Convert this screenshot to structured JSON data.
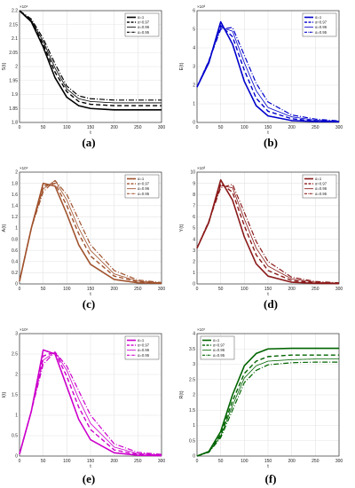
{
  "legend_labels": [
    "α=1",
    "α=0.97",
    "α=0.96",
    "α=0.95"
  ],
  "captions": [
    "(a)",
    "(b)",
    "(c)",
    "(d)",
    "(e)",
    "(f)"
  ],
  "chart_data": [
    {
      "type": "line",
      "caption": "(a)",
      "ylabel": "S(t)",
      "xlabel": "t",
      "exponent": "×10⁴",
      "color": "#000000",
      "xlim": [
        0,
        300
      ],
      "ylim": [
        1.8,
        2.2
      ],
      "xticks": [
        "0",
        "50",
        "100",
        "150",
        "200",
        "250",
        "300"
      ],
      "yticks": [
        "1.8",
        "1.85",
        "1.9",
        "1.95",
        "2",
        "2.05",
        "2.1",
        "2.15",
        "2.2"
      ],
      "legend_position": "top-right",
      "x": [
        0,
        25,
        50,
        75,
        100,
        125,
        150,
        200,
        250,
        300
      ],
      "series": [
        {
          "name": "α=1",
          "values": [
            2.2,
            2.16,
            2.07,
            1.96,
            1.89,
            1.86,
            1.85,
            1.845,
            1.845,
            1.845
          ]
        },
        {
          "name": "α=0.97",
          "values": [
            2.2,
            2.16,
            2.08,
            1.98,
            1.91,
            1.875,
            1.865,
            1.86,
            1.86,
            1.86
          ]
        },
        {
          "name": "α=0.96",
          "values": [
            2.2,
            2.165,
            2.09,
            1.995,
            1.92,
            1.885,
            1.875,
            1.87,
            1.87,
            1.87
          ]
        },
        {
          "name": "α=0.95",
          "values": [
            2.2,
            2.17,
            2.1,
            2.01,
            1.93,
            1.895,
            1.885,
            1.88,
            1.88,
            1.88
          ]
        }
      ]
    },
    {
      "type": "line",
      "caption": "(b)",
      "ylabel": "E(t)",
      "xlabel": "t",
      "exponent": "×10³",
      "color": "#0000cc",
      "xlim": [
        0,
        300
      ],
      "ylim": [
        0,
        6
      ],
      "xticks": [
        "0",
        "50",
        "100",
        "150",
        "200",
        "250",
        "300"
      ],
      "yticks": [
        "0",
        "1",
        "2",
        "3",
        "4",
        "5",
        "6"
      ],
      "legend_position": "top-right",
      "x": [
        0,
        25,
        50,
        75,
        100,
        125,
        150,
        200,
        250,
        300
      ],
      "series": [
        {
          "name": "α=1",
          "values": [
            1.9,
            3.2,
            5.4,
            4.2,
            2.2,
            0.9,
            0.35,
            0.1,
            0.05,
            0.04
          ]
        },
        {
          "name": "α=0.97",
          "values": [
            1.9,
            3.3,
            5.2,
            4.6,
            2.8,
            1.3,
            0.6,
            0.2,
            0.08,
            0.05
          ]
        },
        {
          "name": "α=0.96",
          "values": [
            1.9,
            3.3,
            5.1,
            4.9,
            3.2,
            1.7,
            0.8,
            0.3,
            0.12,
            0.06
          ]
        },
        {
          "name": "α=0.95",
          "values": [
            1.9,
            3.3,
            5.0,
            5.1,
            3.6,
            2.1,
            1.1,
            0.4,
            0.18,
            0.08
          ]
        }
      ]
    },
    {
      "type": "line",
      "caption": "(c)",
      "ylabel": "A(t)",
      "xlabel": "t",
      "exponent": "×10⁴",
      "color": "#a0522d",
      "xlim": [
        0,
        300
      ],
      "ylim": [
        0,
        2
      ],
      "xticks": [
        "0",
        "50",
        "100",
        "150",
        "200",
        "250",
        "300"
      ],
      "yticks": [
        "0",
        "0.2",
        "0.4",
        "0.6",
        "0.8",
        "1",
        "1.2",
        "1.4",
        "1.6",
        "1.8",
        "2"
      ],
      "legend_position": "top-right",
      "x": [
        0,
        25,
        50,
        75,
        100,
        125,
        150,
        200,
        250,
        300
      ],
      "series": [
        {
          "name": "α=1",
          "values": [
            0.05,
            1.0,
            1.8,
            1.75,
            1.25,
            0.7,
            0.35,
            0.08,
            0.02,
            0.01
          ]
        },
        {
          "name": "α=0.97",
          "values": [
            0.05,
            1.0,
            1.75,
            1.8,
            1.4,
            0.9,
            0.5,
            0.14,
            0.04,
            0.015
          ]
        },
        {
          "name": "α=0.96",
          "values": [
            0.05,
            1.0,
            1.7,
            1.85,
            1.5,
            1.0,
            0.6,
            0.18,
            0.05,
            0.02
          ]
        },
        {
          "name": "α=0.95",
          "values": [
            0.05,
            1.0,
            1.65,
            1.85,
            1.6,
            1.15,
            0.7,
            0.24,
            0.07,
            0.025
          ]
        }
      ]
    },
    {
      "type": "line",
      "caption": "(d)",
      "ylabel": "Y(t)",
      "xlabel": "t",
      "exponent": "×10³",
      "color": "#8b1a1a",
      "xlim": [
        0,
        300
      ],
      "ylim": [
        0,
        10
      ],
      "xticks": [
        "0",
        "50",
        "100",
        "150",
        "200",
        "250",
        "300"
      ],
      "yticks": [
        "0",
        "1",
        "2",
        "3",
        "4",
        "5",
        "6",
        "7",
        "8",
        "9",
        "10"
      ],
      "legend_position": "top-right",
      "x": [
        0,
        25,
        50,
        75,
        100,
        125,
        150,
        200,
        250,
        300
      ],
      "series": [
        {
          "name": "α=1",
          "values": [
            3.2,
            5.5,
            9.3,
            7.5,
            4.2,
            1.8,
            0.7,
            0.15,
            0.05,
            0.03
          ]
        },
        {
          "name": "α=0.97",
          "values": [
            3.2,
            5.6,
            9.0,
            8.2,
            5.2,
            2.6,
            1.2,
            0.3,
            0.1,
            0.05
          ]
        },
        {
          "name": "α=0.96",
          "values": [
            3.2,
            5.6,
            8.8,
            8.6,
            5.8,
            3.2,
            1.6,
            0.45,
            0.15,
            0.07
          ]
        },
        {
          "name": "α=0.95",
          "values": [
            3.2,
            5.6,
            8.6,
            8.9,
            6.4,
            3.8,
            2.0,
            0.6,
            0.22,
            0.1
          ]
        }
      ]
    },
    {
      "type": "line",
      "caption": "(e)",
      "ylabel": "I(t)",
      "xlabel": "t",
      "exponent": "×10⁴",
      "color": "#cc00cc",
      "xlim": [
        0,
        300
      ],
      "ylim": [
        0,
        3
      ],
      "xticks": [
        "0",
        "50",
        "100",
        "150",
        "200",
        "250",
        "300"
      ],
      "yticks": [
        "0",
        "0.5",
        "1",
        "1.5",
        "2",
        "2.5",
        "3"
      ],
      "legend_position": "top-right",
      "x": [
        0,
        25,
        50,
        75,
        100,
        125,
        150,
        200,
        250,
        300
      ],
      "series": [
        {
          "name": "α=1",
          "values": [
            0.05,
            1.1,
            2.6,
            2.5,
            1.7,
            0.9,
            0.4,
            0.08,
            0.02,
            0.01
          ]
        },
        {
          "name": "α=0.97",
          "values": [
            0.05,
            1.1,
            2.45,
            2.55,
            1.95,
            1.2,
            0.65,
            0.15,
            0.04,
            0.02
          ]
        },
        {
          "name": "α=0.96",
          "values": [
            0.05,
            1.1,
            2.35,
            2.55,
            2.1,
            1.4,
            0.8,
            0.22,
            0.06,
            0.03
          ]
        },
        {
          "name": "α=0.95",
          "values": [
            0.05,
            1.1,
            2.25,
            2.55,
            2.2,
            1.6,
            1.0,
            0.3,
            0.09,
            0.04
          ]
        }
      ]
    },
    {
      "type": "line",
      "caption": "(f)",
      "ylabel": "R(t)",
      "xlabel": "t",
      "exponent": "×10⁷",
      "color": "#006400",
      "xlim": [
        0,
        300
      ],
      "ylim": [
        0,
        4
      ],
      "xticks": [
        "0",
        "50",
        "100",
        "150",
        "200",
        "250",
        "300"
      ],
      "yticks": [
        "0",
        "0.5",
        "1",
        "1.5",
        "2",
        "2.5",
        "3",
        "3.5",
        "4"
      ],
      "legend_position": "top-left",
      "x": [
        0,
        25,
        50,
        75,
        100,
        125,
        150,
        200,
        250,
        300
      ],
      "series": [
        {
          "name": "α=1",
          "values": [
            0,
            0.15,
            0.8,
            2.0,
            2.95,
            3.35,
            3.5,
            3.52,
            3.52,
            3.52
          ]
        },
        {
          "name": "α=0.97",
          "values": [
            0,
            0.14,
            0.7,
            1.8,
            2.7,
            3.1,
            3.25,
            3.3,
            3.3,
            3.3
          ]
        },
        {
          "name": "α=0.96",
          "values": [
            0,
            0.13,
            0.65,
            1.65,
            2.55,
            2.95,
            3.1,
            3.15,
            3.17,
            3.17
          ]
        },
        {
          "name": "α=0.95",
          "values": [
            0,
            0.12,
            0.6,
            1.5,
            2.4,
            2.8,
            2.98,
            3.05,
            3.07,
            3.07
          ]
        }
      ]
    }
  ]
}
